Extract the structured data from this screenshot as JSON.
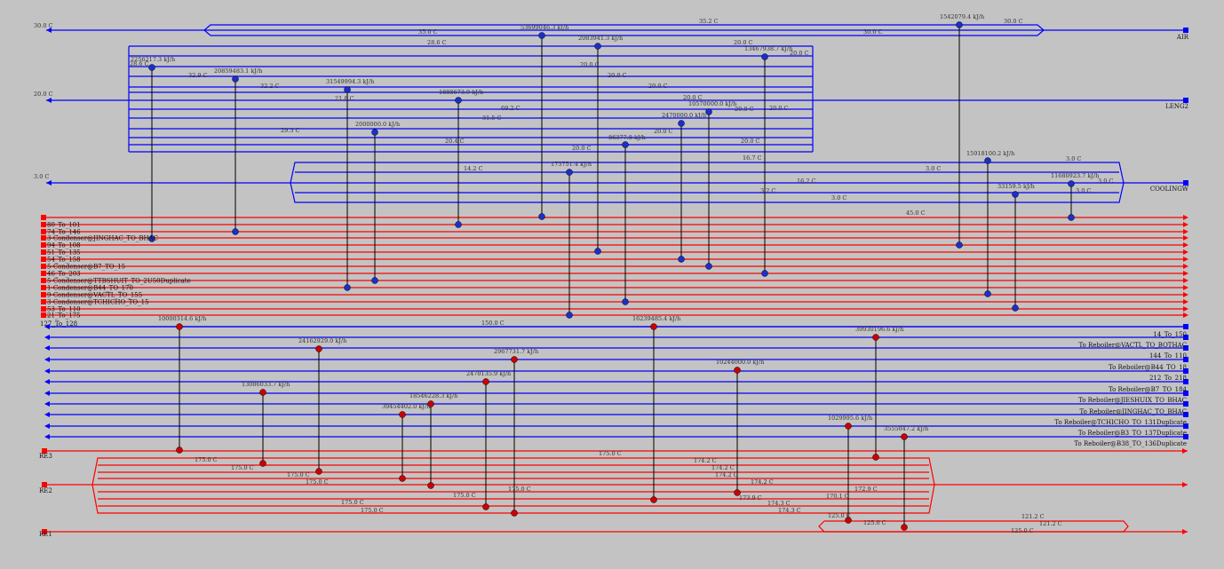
{
  "diagram": {
    "colors": {
      "cold": "#0000ff",
      "hot": "#ff0000",
      "hot_marker": "#cc0000",
      "cold_marker": "#1a2fcc",
      "link": "#000000"
    },
    "cold_utilities": [
      {
        "name": "AIR",
        "t_in_label": "30.0 C"
      },
      {
        "name": "LENG2",
        "t_in_label": "20.0 C"
      },
      {
        "name": "COOLINGW",
        "t_in_label": "3.0 C"
      }
    ],
    "hot_streams": [
      "80_To_101",
      "74_To_146",
      "3-Condenser@JINGHAC_TO_BHAC",
      "94_To_108",
      "51_To_135",
      "54_To_158",
      "5-Condenser@B7_TO_15",
      "46_To_203",
      "5-Condenser@TTBSHUIT_TO_2U50Duplicate",
      "1-Condenser@B44_TO_170",
      "9-Condenser@VACTL_TO_155",
      "3-Condenser@TCHICHO_TO_15",
      "53_To_110",
      "21_To_175"
    ],
    "cold_streams": [
      "127_To_128",
      "14_To_150",
      "To Reboiler@VACTL_TO_BOTHAC",
      "144_To_110",
      "To Reboiler@B44_TO_18",
      "212_To_218",
      "To Reboiler@B7_TO_184",
      "To Reboiler@JIESHUIX_TO_BHAC",
      "To Reboiler@JINGHAC_TO_BHAC",
      "To Reboiler@TCHICHO_TO_131Duplicate",
      "To Reboiler@B3_TO_137Duplicate",
      "To Reboiler@B38_TO_136Duplicate"
    ],
    "hot_utilities": [
      "RE3",
      "RE2",
      "RE1"
    ],
    "temp_labels": [
      {
        "t": "35.2 C"
      },
      {
        "t": "30.0 C"
      },
      {
        "t": "35.0 C"
      },
      {
        "t": "30.0 C"
      },
      {
        "t": "28.6 C"
      },
      {
        "t": "28.6 C"
      },
      {
        "t": "32.9 C"
      },
      {
        "t": "32.2 C"
      },
      {
        "t": "21.8 C"
      },
      {
        "t": "20.0 C"
      },
      {
        "t": "20.0 C"
      },
      {
        "t": "20.0 C"
      },
      {
        "t": "20.0 C"
      },
      {
        "t": "20.0 C"
      },
      {
        "t": "20.0 C"
      },
      {
        "t": "69.2 C"
      },
      {
        "t": "31.5 C"
      },
      {
        "t": "20.0 C"
      },
      {
        "t": "20.0 C"
      },
      {
        "t": "29.3 C"
      },
      {
        "t": "20.0 C"
      },
      {
        "t": "20.4 C"
      },
      {
        "t": "20.0 C"
      },
      {
        "t": "20.0 C"
      },
      {
        "t": "14.2 C"
      },
      {
        "t": "16.7 C"
      },
      {
        "t": "3.0 C"
      },
      {
        "t": "3.0 C"
      },
      {
        "t": "3.0 C"
      },
      {
        "t": "16.2 C"
      },
      {
        "t": "3.2 C"
      },
      {
        "t": "3.0 C"
      },
      {
        "t": "3.0 C"
      },
      {
        "t": "45.0 C"
      },
      {
        "t": "150.0 C"
      },
      {
        "t": "175.0 C"
      },
      {
        "t": "175.0 C"
      },
      {
        "t": "175.0 C"
      },
      {
        "t": "175.0 C"
      },
      {
        "t": "175.0 C"
      },
      {
        "t": "174.2 C"
      },
      {
        "t": "174.2 C"
      },
      {
        "t": "174.2 C"
      },
      {
        "t": "174.2 C"
      },
      {
        "t": "173.9 C"
      },
      {
        "t": "175.0 C"
      },
      {
        "t": "175.0 C"
      },
      {
        "t": "172.9 C"
      },
      {
        "t": "175.0 C"
      },
      {
        "t": "175.0 C"
      },
      {
        "t": "174.3 C"
      },
      {
        "t": "174.3 C"
      },
      {
        "t": "170.1 C"
      },
      {
        "t": "125.0 C"
      },
      {
        "t": "125.0 C"
      },
      {
        "t": "121.2 C"
      },
      {
        "t": "121.2 C"
      },
      {
        "t": "125.0 C"
      }
    ],
    "exchangers_cold_utility": [
      {
        "duty": "53699046.3 kJ/h"
      },
      {
        "duty": "2083941.3 kJ/h"
      },
      {
        "duty": "13467938.7 kJ/h"
      },
      {
        "duty": "1542079.4 kJ/h"
      },
      {
        "duty": "2256217.3 kJ/h"
      },
      {
        "duty": "20859483.1 kJ/h"
      },
      {
        "duty": "31549994.3 kJ/h"
      },
      {
        "duty": "1888673.9 kJ/h"
      },
      {
        "duty": "2000000.0 kJ/h"
      },
      {
        "duty": "10570000.0 kJ/h"
      },
      {
        "duty": "2470000.0 kJ/h"
      },
      {
        "duty": "86377.8 kJ/h"
      },
      {
        "duty": "173751.4 kJ/h"
      },
      {
        "duty": "15918100.2 kJ/h"
      },
      {
        "duty": "33159.5 kJ/h"
      },
      {
        "duty": "11680923.7 kJ/h"
      }
    ],
    "exchangers_hot_utility": [
      {
        "duty": "10000314.6 kJ/h"
      },
      {
        "duty": "16239485.4 kJ/h"
      },
      {
        "duty": "39930196.6 kJ/h"
      },
      {
        "duty": "24162929.0 kJ/h"
      },
      {
        "duty": "2967731.7 kJ/h"
      },
      {
        "duty": "10244000.0 kJ/h"
      },
      {
        "duty": "2470135.9 kJ/h"
      },
      {
        "duty": "13086033.7 kJ/h"
      },
      {
        "duty": "18546228.3 kJ/h"
      },
      {
        "duty": "39454402.0 kJ/h"
      },
      {
        "duty": "1029995.6 kJ/h"
      },
      {
        "duty": "3555047.2 kJ/h"
      }
    ]
  }
}
